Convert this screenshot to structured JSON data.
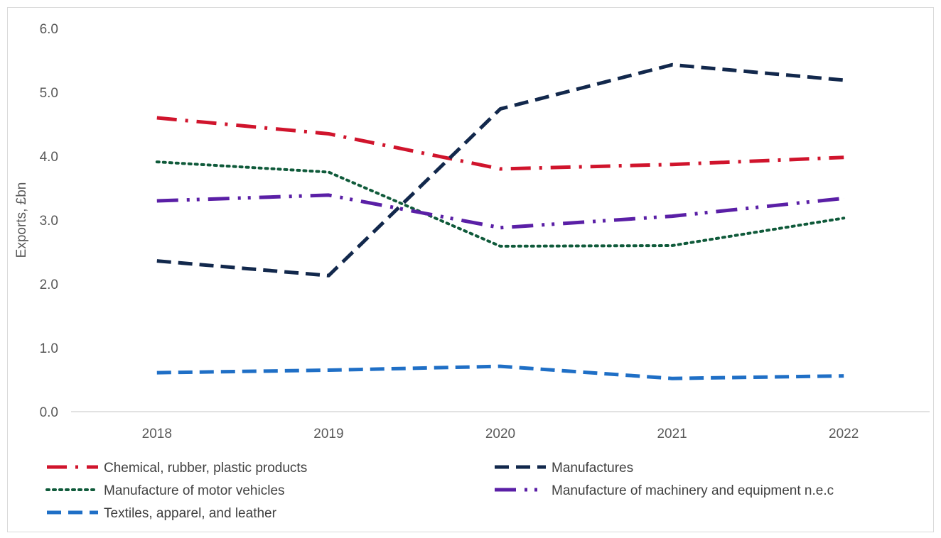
{
  "chart_data": {
    "type": "line",
    "title": "",
    "xlabel": "",
    "ylabel": "Exports, £bn",
    "categories": [
      "2018",
      "2019",
      "2020",
      "2021",
      "2022"
    ],
    "ylim": [
      0,
      6
    ],
    "yticks": [
      "0.0",
      "1.0",
      "2.0",
      "3.0",
      "4.0",
      "5.0",
      "6.0"
    ],
    "grid": false,
    "legend_position": "bottom",
    "series": [
      {
        "name": "Chemical, rubber, plastic products",
        "values": [
          4.6,
          4.35,
          3.8,
          3.87,
          3.98
        ],
        "color": "#d0142c",
        "dash": "dash-dot"
      },
      {
        "name": "Manufactures",
        "values": [
          2.36,
          2.13,
          4.74,
          5.43,
          5.19
        ],
        "color": "#12284c",
        "dash": "dash"
      },
      {
        "name": "Manufacture of motor vehicles",
        "values": [
          3.91,
          3.75,
          2.59,
          2.6,
          3.03
        ],
        "color": "#0f5a3a",
        "dash": "dot"
      },
      {
        "name": "Manufacture of machinery and equipment n.e.c",
        "values": [
          3.3,
          3.39,
          2.88,
          3.06,
          3.34
        ],
        "color": "#5a1fa6",
        "dash": "long-dash-dot-dot"
      },
      {
        "name": "Textiles, apparel, and leather",
        "values": [
          0.61,
          0.65,
          0.71,
          0.52,
          0.56
        ],
        "color": "#1f6fc6",
        "dash": "dash"
      }
    ]
  }
}
